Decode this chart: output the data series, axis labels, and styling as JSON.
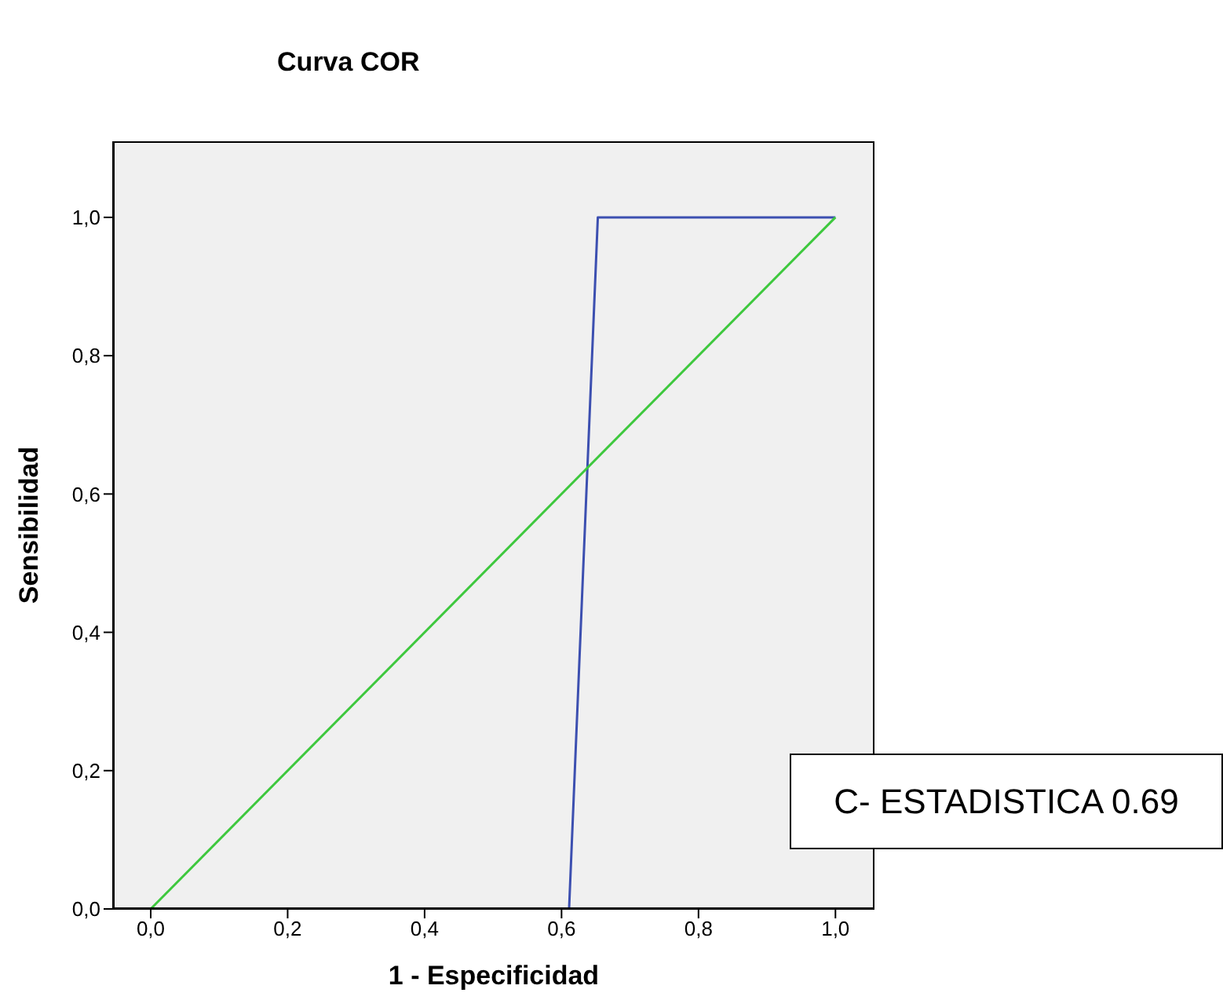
{
  "chart_data": {
    "type": "line",
    "title": "Curva COR",
    "xlabel": "1 - Especificidad",
    "ylabel": "Sensibilidad",
    "series": [
      {
        "color": "#3c4fb0",
        "x": [
          0,
          0.611,
          0.653,
          1
        ],
        "values": [
          0,
          0,
          1,
          1
        ]
      },
      {
        "color": "#3ec83e",
        "x": [
          0,
          1
        ],
        "values": [
          0,
          1
        ]
      }
    ],
    "xlim": [
      -0.055,
      1.057
    ],
    "ylim": [
      0,
      1.11
    ],
    "xticks": [
      {
        "value": 0,
        "label": "0,0"
      },
      {
        "value": 0.2,
        "label": "0,2"
      },
      {
        "value": 0.4,
        "label": "0,4"
      },
      {
        "value": 0.6,
        "label": "0,6"
      },
      {
        "value": 0.8,
        "label": "0,8"
      },
      {
        "value": 1,
        "label": "1,0"
      }
    ],
    "yticks": [
      {
        "value": 0,
        "label": "0,0"
      },
      {
        "value": 0.2,
        "label": "0,2"
      },
      {
        "value": 0.4,
        "label": "0,4"
      },
      {
        "value": 0.6,
        "label": "0,6"
      },
      {
        "value": 0.8,
        "label": "0,8"
      },
      {
        "value": 1,
        "label": "1,0"
      }
    ],
    "marker": "none",
    "line_style": "solid",
    "grid": false,
    "annotations": [
      "C- ESTADISTICA 0.69"
    ]
  }
}
